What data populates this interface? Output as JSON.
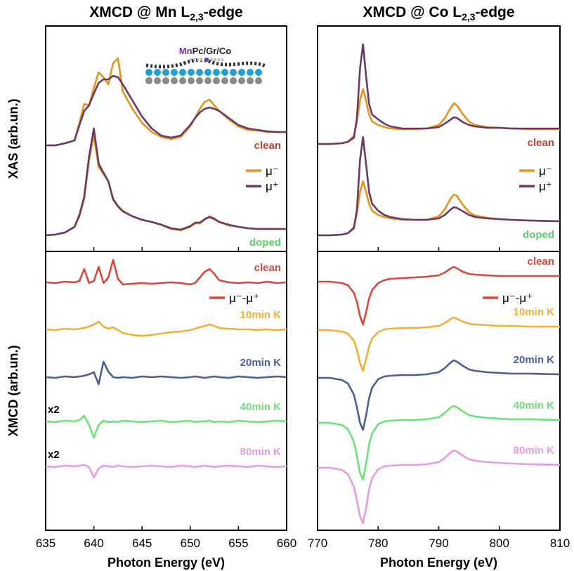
{
  "chart_data": [
    {
      "type": "line",
      "title": [
        "XMCD @ Mn L",
        "2,3",
        "-edge"
      ],
      "ylabel": "XAS (arb.un.)",
      "inset_label": [
        "Mn",
        "Pc/Gr/Co"
      ],
      "x": [
        635,
        636,
        637,
        638,
        638.5,
        639,
        639.5,
        640,
        640.5,
        641,
        641.5,
        642,
        642.5,
        643,
        644,
        645,
        646,
        647,
        648,
        649,
        650,
        650.5,
        651,
        651.5,
        652,
        652.5,
        653,
        654,
        655,
        656,
        657,
        658,
        659,
        660
      ],
      "xlim": [
        635,
        660
      ],
      "xticks": [
        635,
        640,
        645,
        650,
        655,
        660
      ],
      "ylim": [
        0,
        321
      ],
      "annotations": [
        {
          "text": "clean",
          "color": "#c8402f"
        },
        {
          "text": "doped",
          "color": "#5ccf6b"
        }
      ],
      "series": [
        {
          "name": "μ⁻",
          "color": "#e8921f",
          "values": [
            151,
            151,
            154,
            158,
            183,
            210,
            208,
            233,
            255,
            248,
            238,
            268,
            275,
            228,
            203,
            183,
            170,
            163,
            160,
            163,
            178,
            190,
            203,
            213,
            216,
            208,
            200,
            188,
            178,
            173,
            172,
            170,
            170,
            170
          ]
        },
        {
          "name": "μ⁺",
          "color": "#6b3a63",
          "values": [
            151,
            151,
            154,
            158,
            180,
            200,
            208,
            225,
            240,
            245,
            245,
            250,
            248,
            238,
            215,
            192,
            175,
            165,
            162,
            165,
            180,
            190,
            198,
            203,
            205,
            203,
            200,
            190,
            180,
            175,
            173,
            171,
            170,
            170
          ]
        },
        {
          "name": "μ⁻",
          "color": "#e8921f",
          "values": [
            23,
            24,
            27,
            35,
            50,
            75,
            130,
            165,
            120,
            110,
            100,
            75,
            65,
            58,
            50,
            45,
            42,
            38,
            32,
            30,
            35,
            40,
            40,
            45,
            50,
            47,
            42,
            37,
            35,
            33,
            32,
            32,
            32,
            32
          ]
        },
        {
          "name": "μ⁺",
          "color": "#6b3a63",
          "values": [
            23,
            24,
            27,
            35,
            52,
            78,
            135,
            175,
            125,
            112,
            100,
            74,
            64,
            57,
            50,
            45,
            42,
            38,
            33,
            31,
            36,
            41,
            41,
            46,
            49,
            46,
            42,
            38,
            35,
            33,
            32,
            32,
            32,
            32
          ]
        }
      ]
    },
    {
      "type": "line",
      "title": [
        "XMCD @ Co L",
        "2,3",
        "-edge"
      ],
      "x": [
        770,
        772,
        774,
        775,
        776,
        776.5,
        777,
        777.5,
        778,
        778.5,
        779,
        780,
        781,
        782,
        784,
        786,
        788,
        790,
        791,
        792,
        792.5,
        793,
        794,
        795,
        796,
        798,
        800,
        802,
        805,
        810
      ],
      "xlim": [
        770,
        810
      ],
      "xticks": [
        770,
        780,
        790,
        800,
        810
      ],
      "ylim": [
        0,
        321
      ],
      "annotations": [
        {
          "text": "clean",
          "color": "#c8402f"
        },
        {
          "text": "doped",
          "color": "#5ccf6b"
        }
      ],
      "series": [
        {
          "name": "μ⁻",
          "color": "#e8921f",
          "values": [
            153,
            153,
            154,
            156,
            165,
            185,
            215,
            231,
            215,
            195,
            185,
            180,
            177,
            175,
            174,
            174,
            175,
            180,
            190,
            205,
            211,
            208,
            195,
            185,
            180,
            177,
            176,
            175,
            174,
            174
          ]
        },
        {
          "name": "μ⁺",
          "color": "#6b3a63",
          "values": [
            153,
            153,
            154,
            156,
            162,
            190,
            260,
            295,
            250,
            210,
            195,
            188,
            182,
            178,
            175,
            175,
            175,
            177,
            182,
            188,
            191,
            190,
            184,
            180,
            178,
            176,
            176,
            175,
            175,
            175
          ]
        },
        {
          "name": "μ⁻",
          "color": "#e8921f",
          "values": [
            23,
            23,
            24,
            26,
            35,
            55,
            85,
            100,
            85,
            68,
            58,
            52,
            49,
            47,
            45,
            45,
            45,
            50,
            60,
            76,
            81,
            79,
            66,
            56,
            51,
            48,
            46,
            45,
            44,
            43
          ]
        },
        {
          "name": "μ⁺",
          "color": "#6b3a63",
          "values": [
            23,
            23,
            24,
            26,
            33,
            60,
            130,
            163,
            125,
            85,
            68,
            58,
            52,
            49,
            46,
            45,
            45,
            47,
            52,
            60,
            63,
            62,
            57,
            52,
            49,
            47,
            46,
            45,
            44,
            43
          ]
        }
      ]
    },
    {
      "type": "line",
      "ylabel": "XMCD (arb.un.)",
      "xlabel": "Photon Energy (eV)",
      "legend_label": "μ⁻-μ⁺",
      "x": [
        635,
        636,
        637,
        638,
        638.5,
        639,
        639.5,
        640,
        640.5,
        641,
        641.5,
        642,
        642.5,
        643,
        644,
        645,
        646,
        647,
        648,
        649,
        650,
        650.5,
        651,
        651.5,
        652,
        652.5,
        653,
        654,
        655,
        656,
        657,
        658,
        659,
        660
      ],
      "xlim": [
        635,
        660
      ],
      "xticks": [
        635,
        640,
        645,
        650,
        655,
        660
      ],
      "ylim": [
        0,
        397
      ],
      "annotations": [
        {
          "text": "x2",
          "color": "#000000"
        },
        {
          "text": "x2",
          "color": "#000000"
        }
      ],
      "series": [
        {
          "name": "clean",
          "color": "#d9483b",
          "values": [
            353,
            352,
            354,
            353,
            355,
            372,
            352,
            355,
            375,
            352,
            360,
            385,
            358,
            350,
            351,
            352,
            351,
            352,
            353,
            352,
            350,
            352,
            360,
            368,
            372,
            365,
            356,
            353,
            352,
            353,
            352,
            354,
            352,
            353
          ]
        },
        {
          "name": "10min K",
          "color": "#f2b134",
          "values": [
            286,
            285,
            287,
            286,
            287,
            288,
            290,
            293,
            297,
            290,
            287,
            289,
            285,
            281,
            278,
            277,
            278,
            280,
            282,
            283,
            285,
            287,
            289,
            291,
            293,
            291,
            288,
            287,
            286,
            286,
            285,
            286,
            285,
            286
          ]
        },
        {
          "name": "20min K",
          "color": "#4a5f9a",
          "values": [
            218,
            217,
            219,
            218,
            219,
            220,
            222,
            225,
            208,
            240,
            226,
            218,
            217,
            218,
            217,
            219,
            218,
            219,
            218,
            217,
            218,
            219,
            218,
            217,
            218,
            219,
            218,
            217,
            219,
            218,
            217,
            218,
            219,
            218
          ]
        },
        {
          "name": "40min K",
          "color": "#6ee07a",
          "values": [
            155,
            154,
            156,
            155,
            157,
            163,
            150,
            132,
            150,
            156,
            154,
            155,
            154,
            156,
            155,
            154,
            155,
            156,
            154,
            155,
            156,
            154,
            155,
            155,
            156,
            154,
            155,
            154,
            156,
            155,
            154,
            155,
            156,
            155
          ]
        },
        {
          "name": "80min K",
          "color": "#e79be3",
          "values": [
            91,
            90,
            92,
            91,
            92,
            93,
            90,
            75,
            88,
            92,
            91,
            90,
            92,
            91,
            90,
            91,
            92,
            91,
            90,
            92,
            91,
            90,
            91,
            92,
            91,
            90,
            91,
            92,
            91,
            90,
            92,
            91,
            90,
            91
          ]
        }
      ]
    },
    {
      "type": "line",
      "xlabel": "Photon Energy (eV)",
      "legend_label": "μ⁻-μ⁺",
      "x": [
        770,
        772,
        774,
        775,
        776,
        776.5,
        777,
        777.5,
        778,
        778.5,
        779,
        780,
        781,
        782,
        784,
        786,
        788,
        790,
        791,
        792,
        792.5,
        793,
        794,
        795,
        796,
        798,
        800,
        802,
        805,
        810
      ],
      "xlim": [
        770,
        810
      ],
      "xticks": [
        770,
        780,
        790,
        800,
        810
      ],
      "ylim": [
        0,
        397
      ],
      "series": [
        {
          "name": "clean",
          "color": "#d9483b",
          "values": [
            354,
            354,
            352,
            349,
            338,
            325,
            305,
            293,
            310,
            330,
            342,
            352,
            356,
            358,
            359,
            360,
            361,
            363,
            367,
            373,
            375,
            373,
            368,
            365,
            364,
            363,
            362,
            362,
            362,
            362
          ]
        },
        {
          "name": "10min K",
          "color": "#f2b134",
          "values": [
            285,
            285,
            283,
            280,
            270,
            257,
            238,
            227,
            243,
            262,
            273,
            282,
            286,
            287,
            288,
            288,
            289,
            291,
            295,
            301,
            303,
            301,
            297,
            294,
            293,
            292,
            291,
            291,
            290,
            290
          ]
        },
        {
          "name": "20min K",
          "color": "#4a5f9a",
          "values": [
            217,
            217,
            214,
            209,
            193,
            175,
            153,
            143,
            163,
            188,
            203,
            215,
            219,
            220,
            221,
            221,
            222,
            225,
            231,
            239,
            242,
            240,
            234,
            229,
            227,
            225,
            224,
            223,
            223,
            222
          ]
        },
        {
          "name": "40min K",
          "color": "#6ee07a",
          "values": [
            153,
            153,
            150,
            144,
            126,
            105,
            82,
            72,
            94,
            122,
            138,
            151,
            155,
            156,
            157,
            157,
            158,
            161,
            167,
            175,
            177,
            175,
            169,
            164,
            162,
            160,
            159,
            158,
            158,
            157
          ]
        },
        {
          "name": "80min K",
          "color": "#e79be3",
          "values": [
            89,
            89,
            86,
            80,
            62,
            42,
            20,
            10,
            31,
            58,
            74,
            87,
            91,
            92,
            93,
            93,
            94,
            97,
            103,
            111,
            114,
            112,
            106,
            101,
            99,
            97,
            96,
            95,
            94,
            93
          ]
        }
      ]
    }
  ]
}
